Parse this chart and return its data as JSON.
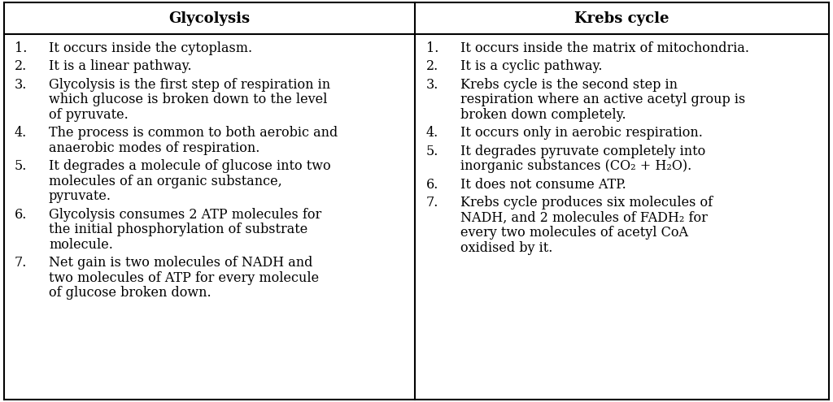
{
  "title_left": "Glycolysis",
  "title_right": "Krebs cycle",
  "left_items": [
    [
      "1.",
      "It occurs inside the cytoplasm."
    ],
    [
      "2.",
      "It is a linear pathway."
    ],
    [
      "3.",
      "Glycolysis is the first step of respiration in\nwhich glucose is broken down to the level\nof pyruvate."
    ],
    [
      "4.",
      "The process is common to both aerobic and\nanaerobic modes of respiration."
    ],
    [
      "5.",
      "It degrades a molecule of glucose into two\nmolecules of an organic substance,\npyruvate."
    ],
    [
      "6.",
      "Glycolysis consumes 2 ATP molecules for\nthe initial phosphorylation of substrate\nmolecule."
    ],
    [
      "7.",
      "Net gain is two molecules of NADH and\ntwo molecules of ATP for every molecule\nof glucose broken down."
    ]
  ],
  "right_items": [
    [
      "1.",
      "It occurs inside the matrix of mitochondria."
    ],
    [
      "2.",
      "It is a cyclic pathway."
    ],
    [
      "3.",
      "Krebs cycle is the second step in\nrespiration where an active acetyl group is\nbroken down completely."
    ],
    [
      "4.",
      "It occurs only in aerobic respiration."
    ],
    [
      "5.",
      "It degrades pyruvate completely into\ninorganic substances (CO₂ + H₂O)."
    ],
    [
      "6.",
      "It does not consume ATP."
    ],
    [
      "7.",
      "Krebs cycle produces six molecules of\nNADH, and 2 molecules of FADH₂ for\nevery two molecules of acetyl CoA\noxidised by it."
    ]
  ],
  "border_color": "#000000",
  "header_bg": "#ffffff",
  "body_bg": "#ffffff",
  "font_size": 11.5,
  "title_font_size": 13,
  "fig_width": 10.24,
  "fig_height": 4.95,
  "dpi": 100
}
